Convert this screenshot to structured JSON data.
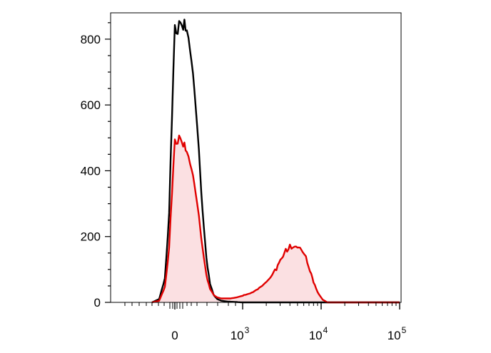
{
  "chart_data": {
    "type": "area",
    "title": "",
    "xlabel": "",
    "ylabel": "",
    "x_scale": "biexponential",
    "ylim": [
      0,
      880
    ],
    "y_ticks": [
      {
        "value": 0,
        "label": "0"
      },
      {
        "value": 200,
        "label": "200"
      },
      {
        "value": 400,
        "label": "400"
      },
      {
        "value": 600,
        "label": "600"
      },
      {
        "value": 800,
        "label": "800"
      }
    ],
    "x_ticks": [
      {
        "value": 0,
        "base": "0",
        "exp": ""
      },
      {
        "value": 1000,
        "base": "10",
        "exp": "3"
      },
      {
        "value": 10000,
        "base": "10",
        "exp": "4"
      },
      {
        "value": 100000,
        "base": "10",
        "exp": "5"
      }
    ],
    "grid": false,
    "legend": "none",
    "series": [
      {
        "color": "#000000",
        "filled": false,
        "x": [
          -160,
          -110,
          -70,
          -40,
          -20,
          0,
          10,
          20,
          30,
          40,
          50,
          60,
          75,
          95,
          120,
          150,
          185,
          230,
          290,
          380,
          500,
          700,
          1000,
          2000,
          5000,
          10000,
          30000,
          100000
        ],
        "values": [
          0,
          10,
          70,
          260,
          560,
          800,
          860,
          875,
          850,
          800,
          720,
          610,
          440,
          270,
          130,
          55,
          22,
          10,
          5,
          3,
          2,
          1,
          0,
          0,
          0,
          0,
          0,
          0
        ]
      },
      {
        "color": "#e00000",
        "fill": "#fbe0e2",
        "filled": true,
        "x": [
          -160,
          -110,
          -70,
          -40,
          -20,
          0,
          10,
          20,
          30,
          40,
          50,
          60,
          75,
          95,
          120,
          150,
          185,
          230,
          290,
          380,
          500,
          700,
          1000,
          1300,
          1700,
          2200,
          2800,
          3400,
          4000,
          4600,
          5200,
          5800,
          6400,
          7200,
          8000,
          9000,
          10500,
          12000,
          30000,
          100000
        ],
        "values": [
          0,
          5,
          45,
          160,
          330,
          470,
          510,
          500,
          470,
          440,
          400,
          340,
          250,
          160,
          80,
          40,
          22,
          15,
          12,
          12,
          12,
          15,
          20,
          28,
          45,
          70,
          110,
          150,
          170,
          180,
          172,
          160,
          140,
          100,
          60,
          30,
          8,
          0,
          0,
          0
        ]
      }
    ]
  }
}
